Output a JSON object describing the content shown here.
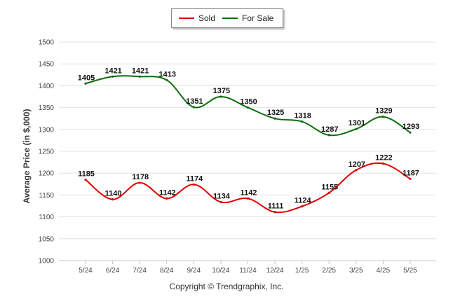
{
  "chart_data": {
    "type": "line",
    "title": "",
    "xlabel": "",
    "ylabel": "Average Price (in $,000)",
    "categories": [
      "5/24",
      "6/24",
      "7/24",
      "8/24",
      "9/24",
      "10/24",
      "11/24",
      "12/24",
      "1/25",
      "2/25",
      "3/25",
      "4/25",
      "5/25"
    ],
    "ylim": [
      1000,
      1500
    ],
    "yticks": [
      1000,
      1050,
      1100,
      1150,
      1200,
      1250,
      1300,
      1350,
      1400,
      1450,
      1500
    ],
    "grid": true,
    "legend_position": "top-center",
    "series": [
      {
        "name": "Sold",
        "color": "#e00000",
        "values": [
          1185,
          1140,
          1178,
          1142,
          1174,
          1134,
          1142,
          1111,
          1124,
          1155,
          1207,
          1222,
          1187
        ]
      },
      {
        "name": "For Sale",
        "color": "#0a6e0a",
        "values": [
          1405,
          1421,
          1421,
          1413,
          1351,
          1375,
          1350,
          1325,
          1318,
          1287,
          1301,
          1329,
          1293
        ]
      }
    ]
  },
  "footer": {
    "credit": "Copyright © Trendgraphix, Inc."
  }
}
